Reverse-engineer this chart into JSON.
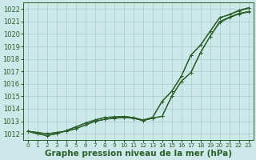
{
  "x": [
    0,
    1,
    2,
    3,
    4,
    5,
    6,
    7,
    8,
    9,
    10,
    11,
    12,
    13,
    14,
    15,
    16,
    17,
    18,
    19,
    20,
    21,
    22,
    23
  ],
  "line1": [
    1012.2,
    1012.1,
    1012.0,
    1012.1,
    1012.2,
    1012.4,
    1012.7,
    1013.0,
    1013.15,
    1013.25,
    1013.3,
    1013.25,
    1013.05,
    1013.25,
    1013.4,
    1015.0,
    1016.2,
    1016.9,
    1018.5,
    1019.8,
    1020.9,
    1021.3,
    1021.6,
    1021.75
  ],
  "line2": [
    1012.2,
    1012.1,
    1012.0,
    1012.1,
    1012.2,
    1012.4,
    1012.7,
    1013.0,
    1013.15,
    1013.25,
    1013.3,
    1013.25,
    1013.05,
    1013.25,
    1013.4,
    1015.0,
    1016.2,
    1016.9,
    1018.5,
    1019.8,
    1021.0,
    1021.35,
    1021.65,
    1021.8
  ],
  "line3": [
    1012.2,
    1012.0,
    1011.85,
    1012.0,
    1012.25,
    1012.55,
    1012.85,
    1013.1,
    1013.3,
    1013.35,
    1013.38,
    1013.3,
    1013.1,
    1013.3,
    1014.6,
    1015.4,
    1016.6,
    1018.3,
    1019.1,
    1020.2,
    1021.3,
    1021.55,
    1021.85,
    1022.05
  ],
  "line4": [
    1012.2,
    1012.0,
    1011.85,
    1012.0,
    1012.25,
    1012.55,
    1012.85,
    1013.1,
    1013.3,
    1013.35,
    1013.38,
    1013.3,
    1013.1,
    1013.3,
    1014.6,
    1015.4,
    1016.6,
    1018.3,
    1019.1,
    1020.2,
    1021.3,
    1021.55,
    1021.9,
    1022.1
  ],
  "bg_color": "#cce8e8",
  "grid_color": "#aacccc",
  "line_color": "#2a5f2a",
  "marker": "+",
  "markersize": 3.5,
  "linewidth": 0.9,
  "ylim": [
    1011.5,
    1022.5
  ],
  "xlim": [
    -0.5,
    23.5
  ],
  "yticks": [
    1012,
    1013,
    1014,
    1015,
    1016,
    1017,
    1018,
    1019,
    1020,
    1021,
    1022
  ],
  "xticks": [
    0,
    1,
    2,
    3,
    4,
    5,
    6,
    7,
    8,
    9,
    10,
    11,
    12,
    13,
    14,
    15,
    16,
    17,
    18,
    19,
    20,
    21,
    22,
    23
  ],
  "xlabel": "Graphe pression niveau de la mer (hPa)",
  "xlabel_fontsize": 7.5,
  "ytick_fontsize": 6.0,
  "xtick_fontsize": 5.2
}
